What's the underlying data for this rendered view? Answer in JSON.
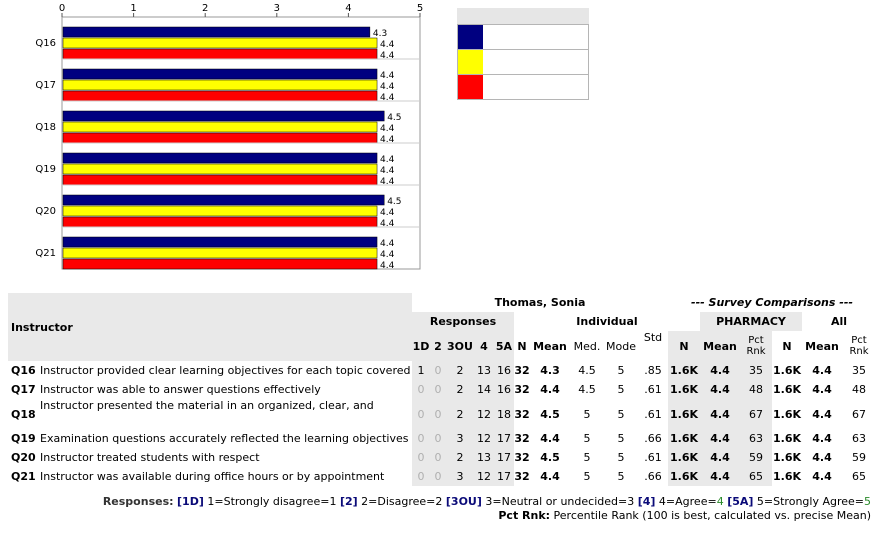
{
  "chart_data": {
    "type": "bar",
    "orientation": "horizontal",
    "categories": [
      "Q16",
      "Q17",
      "Q18",
      "Q19",
      "Q20",
      "Q21"
    ],
    "series": [
      {
        "color": "#000080",
        "values": [
          4.3,
          4.4,
          4.5,
          4.4,
          4.5,
          4.4
        ]
      },
      {
        "color": "#ffff00",
        "values": [
          4.4,
          4.4,
          4.4,
          4.4,
          4.4,
          4.4
        ]
      },
      {
        "color": "#ff0000",
        "values": [
          4.4,
          4.4,
          4.4,
          4.4,
          4.4,
          4.4
        ]
      }
    ],
    "value_labels": [
      [
        "4.3",
        "4.4",
        "4.4"
      ],
      [
        "4.4",
        "4.4",
        "4.4"
      ],
      [
        "4.5",
        "4.4",
        "4.4"
      ],
      [
        "4.4",
        "4.4",
        "4.4"
      ],
      [
        "4.5",
        "4.4",
        "4.4"
      ],
      [
        "4.4",
        "4.4",
        "4.4"
      ]
    ],
    "xlim": [
      0,
      5
    ],
    "xticks": [
      "0",
      "1",
      "2",
      "3",
      "4",
      "5"
    ],
    "grid": false,
    "legend_colors": [
      "#000080",
      "#ffff00",
      "#ff0000"
    ]
  },
  "table": {
    "instructor_label": "Instructor",
    "instructor_name": "Thomas, Sonia",
    "survey_comparisons": "--- Survey Comparisons ---",
    "responses_label": "Responses",
    "individual_label": "Individual",
    "pharmacy_label": "PHARMACY",
    "all_label": "All",
    "std_label": "Std",
    "response_headers": [
      "1D",
      "2",
      "3OU",
      "4",
      "5A"
    ],
    "n_label": "N",
    "mean_label": "Mean",
    "med_label": "Med.",
    "mode_label": "Mode",
    "pct_label_1": "Pct",
    "pct_label_2": "Rnk",
    "rows": [
      {
        "q": "Q16",
        "text": "Instructor provided clear learning objectives for each topic covered",
        "r": [
          "1",
          "0",
          "2",
          "13",
          "16"
        ],
        "n": "32",
        "mean": "4.3",
        "med": "4.5",
        "mode": "5",
        "std": ".85",
        "pn": "1.6K",
        "pmean": "4.4",
        "prank": "35",
        "an": "1.6K",
        "amean": "4.4",
        "arank": "35"
      },
      {
        "q": "Q17",
        "text": "Instructor was able to answer questions effectively",
        "r": [
          "0",
          "0",
          "2",
          "14",
          "16"
        ],
        "n": "32",
        "mean": "4.4",
        "med": "4.5",
        "mode": "5",
        "std": ".61",
        "pn": "1.6K",
        "pmean": "4.4",
        "prank": "48",
        "an": "1.6K",
        "amean": "4.4",
        "arank": "48"
      },
      {
        "q": "Q18",
        "text": "Instructor presented the material in an organized, clear, and",
        "r": [
          "0",
          "0",
          "2",
          "12",
          "18"
        ],
        "n": "32",
        "mean": "4.5",
        "med": "5",
        "mode": "5",
        "std": ".61",
        "pn": "1.6K",
        "pmean": "4.4",
        "prank": "67",
        "an": "1.6K",
        "amean": "4.4",
        "arank": "67"
      },
      {
        "q": "Q19",
        "text": "Examination questions accurately reflected the learning objectives",
        "r": [
          "0",
          "0",
          "3",
          "12",
          "17"
        ],
        "n": "32",
        "mean": "4.4",
        "med": "5",
        "mode": "5",
        "std": ".66",
        "pn": "1.6K",
        "pmean": "4.4",
        "prank": "63",
        "an": "1.6K",
        "amean": "4.4",
        "arank": "63"
      },
      {
        "q": "Q20",
        "text": "Instructor treated students with respect",
        "r": [
          "0",
          "0",
          "2",
          "13",
          "17"
        ],
        "n": "32",
        "mean": "4.5",
        "med": "5",
        "mode": "5",
        "std": ".61",
        "pn": "1.6K",
        "pmean": "4.4",
        "prank": "59",
        "an": "1.6K",
        "amean": "4.4",
        "arank": "59"
      },
      {
        "q": "Q21",
        "text": "Instructor was available during office hours or by appointment",
        "r": [
          "0",
          "0",
          "3",
          "12",
          "17"
        ],
        "n": "32",
        "mean": "4.4",
        "med": "5",
        "mode": "5",
        "std": ".66",
        "pn": "1.6K",
        "pmean": "4.4",
        "prank": "65",
        "an": "1.6K",
        "amean": "4.4",
        "arank": "65"
      }
    ]
  },
  "footer": {
    "responses_label": "Responses:",
    "key_1d": "[1D]",
    "desc_1": "1=Strongly disagree=1",
    "key_2": "[2]",
    "desc_2": "2=Disagree=2",
    "key_3ou": "[3OU]",
    "desc_3": "3=Neutral or undecided=3",
    "key_4": "[4]",
    "desc_4a": "4=Agree=",
    "desc_4b": "4",
    "key_5a": "[5A]",
    "desc_5a": "5=Strongly Agree=",
    "desc_5b": "5",
    "pct_rnk_label": "Pct Rnk:",
    "pct_rnk_desc": "Percentile Rank (100 is best, calculated vs. precise Mean)"
  }
}
